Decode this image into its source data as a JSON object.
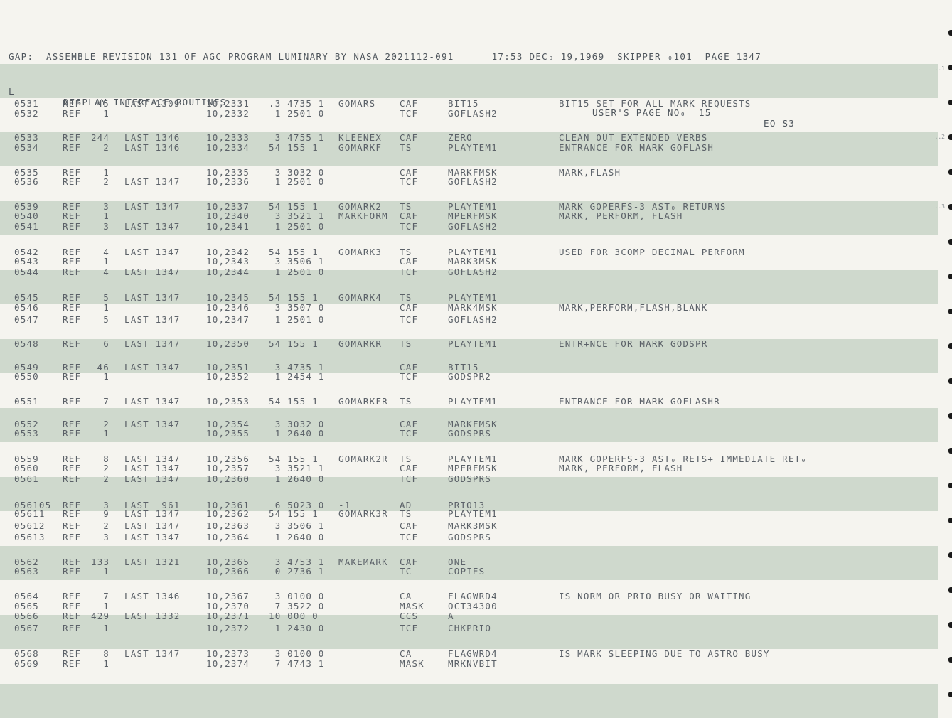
{
  "header": {
    "assembly_line": "GAP:  ASSEMBLE REVISION 131 OF AGC PROGRAM LUMINARY BY NASA 2021112-091      17:53 DEC₀ 19,1969  SKIPPER ₀101  PAGE 1347",
    "section_letter": "L",
    "section_title": "DISPLAY INTERFACE ROUTINES",
    "users_page": "USER'S PAGE NO₀  15",
    "page_code": "EO S3"
  },
  "margin_marks": [
    "..1",
    "..2",
    "..3"
  ],
  "rows": [
    {
      "loc": "0531",
      "ref": "REF",
      "refn": "45",
      "last": "LAST 1309",
      "addr": "10,2331",
      "code": ".3 4735 1",
      "label": "GOMARS",
      "op": "CAF",
      "operand": "BIT15",
      "comment": "BIT15 SET FOR ALL MARK REQUESTS"
    },
    {
      "loc": "0532",
      "ref": "REF",
      "refn": "1",
      "last": "",
      "addr": "10,2332",
      "code": " 1 2501 0",
      "label": "",
      "op": "TCF",
      "operand": "GOFLASH2",
      "comment": ""
    },
    {
      "loc": "0533",
      "ref": "REF",
      "refn": "244",
      "last": "LAST 1346",
      "addr": "10,2333",
      "code": " 3 4755 1",
      "label": "KLEENEX",
      "op": "CAF",
      "operand": "ZERO",
      "comment": "CLEAN OUT EXTENDED VERBS"
    },
    {
      "loc": "0534",
      "ref": "REF",
      "refn": "2",
      "last": "LAST 1346",
      "addr": "10,2334",
      "code": "54 155 1",
      "label": "GOMARKF",
      "op": "TS",
      "operand": "PLAYTEM1",
      "comment": "ENTRANCE FOR MARK GOFLASH"
    },
    {
      "loc": "0535",
      "ref": "REF",
      "refn": "1",
      "last": "",
      "addr": "10,2335",
      "code": " 3 3032 0",
      "label": "",
      "op": "CAF",
      "operand": "MARKFMSK",
      "comment": "MARK,FLASH"
    },
    {
      "loc": "0536",
      "ref": "REF",
      "refn": "2",
      "last": "LAST 1347",
      "addr": "10,2336",
      "code": " 1 2501 0",
      "label": "",
      "op": "TCF",
      "operand": "GOFLASH2",
      "comment": ""
    },
    {
      "loc": "0539",
      "ref": "REF",
      "refn": "3",
      "last": "LAST 1347",
      "addr": "10,2337",
      "code": "54 155 1",
      "label": "GOMARK2",
      "op": "TS",
      "operand": "PLAYTEM1",
      "comment": "MARK GOPERFS-3 AST₀ RETURNS"
    },
    {
      "loc": "0540",
      "ref": "REF",
      "refn": "1",
      "last": "",
      "addr": "10,2340",
      "code": " 3 3521 1",
      "label": "MARKFORM",
      "op": "CAF",
      "operand": "MPERFMSK",
      "comment": "MARK, PERFORM, FLASH"
    },
    {
      "loc": "0541",
      "ref": "REF",
      "refn": "3",
      "last": "LAST 1347",
      "addr": "10,2341",
      "code": " 1 2501 0",
      "label": "",
      "op": "TCF",
      "operand": "GOFLASH2",
      "comment": ""
    },
    {
      "loc": "0542",
      "ref": "REF",
      "refn": "4",
      "last": "LAST 1347",
      "addr": "10,2342",
      "code": "54 155 1",
      "label": "GOMARK3",
      "op": "TS",
      "operand": "PLAYTEM1",
      "comment": "USED FOR 3COMP DECIMAL PERFORM"
    },
    {
      "loc": "0543",
      "ref": "REF",
      "refn": "1",
      "last": "",
      "addr": "10,2343",
      "code": " 3 3506 1",
      "label": "",
      "op": "CAF",
      "operand": "MARK3MSK",
      "comment": ""
    },
    {
      "loc": "0544",
      "ref": "REF",
      "refn": "4",
      "last": "LAST 1347",
      "addr": "10,2344",
      "code": " 1 2501 0",
      "label": "",
      "op": "TCF",
      "operand": "GOFLASH2",
      "comment": ""
    },
    {
      "loc": "0545",
      "ref": "REF",
      "refn": "5",
      "last": "LAST 1347",
      "addr": "10,2345",
      "code": "54 155 1",
      "label": "GOMARK4",
      "op": "TS",
      "operand": "PLAYTEM1",
      "comment": ""
    },
    {
      "loc": "0546",
      "ref": "REF",
      "refn": "1",
      "last": "",
      "addr": "10,2346",
      "code": " 3 3507 0",
      "label": "",
      "op": "CAF",
      "operand": "MARK4MSK",
      "comment": "MARK,PERFORM,FLASH,BLANK"
    },
    {
      "loc": "0547",
      "ref": "REF",
      "refn": "5",
      "last": "LAST 1347",
      "addr": "10,2347",
      "code": " 1 2501 0",
      "label": "",
      "op": "TCF",
      "operand": "GOFLASH2",
      "comment": ""
    },
    {
      "loc": "0548",
      "ref": "REF",
      "refn": "6",
      "last": "LAST 1347",
      "addr": "10,2350",
      "code": "54 155 1",
      "label": "GOMARKR",
      "op": "TS",
      "operand": "PLAYTEM1",
      "comment": "ENTR+NCE FOR MARK GODSPR"
    },
    {
      "loc": "0549",
      "ref": "REF",
      "refn": "46",
      "last": "LAST 1347",
      "addr": "10,2351",
      "code": " 3 4735 1",
      "label": "",
      "op": "CAF",
      "operand": "BIT15",
      "comment": ""
    },
    {
      "loc": "0550",
      "ref": "REF",
      "refn": "1",
      "last": "",
      "addr": "10,2352",
      "code": " 1 2454 1",
      "label": "",
      "op": "TCF",
      "operand": "GODSPR2",
      "comment": ""
    },
    {
      "loc": "0551",
      "ref": "REF",
      "refn": "7",
      "last": "LAST 1347",
      "addr": "10,2353",
      "code": "54 155 1",
      "label": "GOMARKFR",
      "op": "TS",
      "operand": "PLAYTEM1",
      "comment": "ENTRANCE FOR MARK GOFLASHR"
    },
    {
      "loc": "0552",
      "ref": "REF",
      "refn": "2",
      "last": "LAST 1347",
      "addr": "10,2354",
      "code": " 3 3032 0",
      "label": "",
      "op": "CAF",
      "operand": "MARKFMSK",
      "comment": ""
    },
    {
      "loc": "0553",
      "ref": "REF",
      "refn": "1",
      "last": "",
      "addr": "10,2355",
      "code": " 1 2640 0",
      "label": "",
      "op": "TCF",
      "operand": "GODSPRS",
      "comment": ""
    },
    {
      "loc": "0559",
      "ref": "REF",
      "refn": "8",
      "last": "LAST 1347",
      "addr": "10,2356",
      "code": "54 155 1",
      "label": "GOMARK2R",
      "op": "TS",
      "operand": "PLAYTEM1",
      "comment": "MARK GOPERFS-3 AST₀ RETS+ IMMEDIATE RET₀"
    },
    {
      "loc": "0560",
      "ref": "REF",
      "refn": "2",
      "last": "LAST 1347",
      "addr": "10,2357",
      "code": " 3 3521 1",
      "label": "",
      "op": "CAF",
      "operand": "MPERFMSK",
      "comment": "MARK, PERFORM, FLASH"
    },
    {
      "loc": "0561",
      "ref": "REF",
      "refn": "2",
      "last": "LAST 1347",
      "addr": "10,2360",
      "code": " 1 2640 0",
      "label": "",
      "op": "TCF",
      "operand": "GODSPRS",
      "comment": ""
    },
    {
      "loc": "056105",
      "ref": "REF",
      "refn": "3",
      "last": "LAST  961",
      "addr": "10,2361",
      "code": " 6 5023 0",
      "label": "-1",
      "op": "AD",
      "operand": "PRIO13",
      "comment": ""
    },
    {
      "loc": "05611",
      "ref": "REF",
      "refn": "9",
      "last": "LAST 1347",
      "addr": "10,2362",
      "code": "54 155 1",
      "label": "GOMARK3R",
      "op": "TS",
      "operand": "PLAYTEM1",
      "comment": ""
    },
    {
      "loc": "05612",
      "ref": "REF",
      "refn": "2",
      "last": "LAST 1347",
      "addr": "10,2363",
      "code": " 3 3506 1",
      "label": "",
      "op": "CAF",
      "operand": "MARK3MSK",
      "comment": ""
    },
    {
      "loc": "05613",
      "ref": "REF",
      "refn": "3",
      "last": "LAST 1347",
      "addr": "10,2364",
      "code": " 1 2640 0",
      "label": "",
      "op": "TCF",
      "operand": "GODSPRS",
      "comment": ""
    },
    {
      "loc": "0562",
      "ref": "REF",
      "refn": "133",
      "last": "LAST 1321",
      "addr": "10,2365",
      "code": " 3 4753 1",
      "label": "MAKEMARK",
      "op": "CAF",
      "operand": "ONE",
      "comment": ""
    },
    {
      "loc": "0563",
      "ref": "REF",
      "refn": "1",
      "last": "",
      "addr": "10,2366",
      "code": " 0 2736 1",
      "label": "",
      "op": "TC",
      "operand": "COPIES",
      "comment": ""
    },
    {
      "loc": "0564",
      "ref": "REF",
      "refn": "7",
      "last": "LAST 1346",
      "addr": "10,2367",
      "code": " 3 0100 0",
      "label": "",
      "op": "CA",
      "operand": "FLAGWRD4",
      "comment": "IS NORM OR PRIO BUSY OR WAITING"
    },
    {
      "loc": "0565",
      "ref": "REF",
      "refn": "1",
      "last": "",
      "addr": "10,2370",
      "code": " 7 3522 0",
      "label": "",
      "op": "MASK",
      "operand": "OCT34300",
      "comment": ""
    },
    {
      "loc": "0566",
      "ref": "REF",
      "refn": "429",
      "last": "LAST 1332",
      "addr": "10,2371",
      "code": "10 000 0",
      "label": "",
      "op": "CCS",
      "operand": "A",
      "comment": ""
    },
    {
      "loc": "0567",
      "ref": "REF",
      "refn": "1",
      "last": "",
      "addr": "10,2372",
      "code": " 1 2430 0",
      "label": "",
      "op": "TCF",
      "operand": "CHKPRIO",
      "comment": ""
    },
    {
      "loc": "0568",
      "ref": "REF",
      "refn": "8",
      "last": "LAST 1347",
      "addr": "10,2373",
      "code": " 3 0100 0",
      "label": "",
      "op": "CA",
      "operand": "FLAGWRD4",
      "comment": "IS MARK SLEEPING DUE TO ASTRO BUSY"
    },
    {
      "loc": "0569",
      "ref": "REF",
      "refn": "1",
      "last": "",
      "addr": "10,2374",
      "code": " 7 4743 1",
      "label": "",
      "op": "MASK",
      "operand": "MRKNVBIT",
      "comment": ""
    }
  ]
}
